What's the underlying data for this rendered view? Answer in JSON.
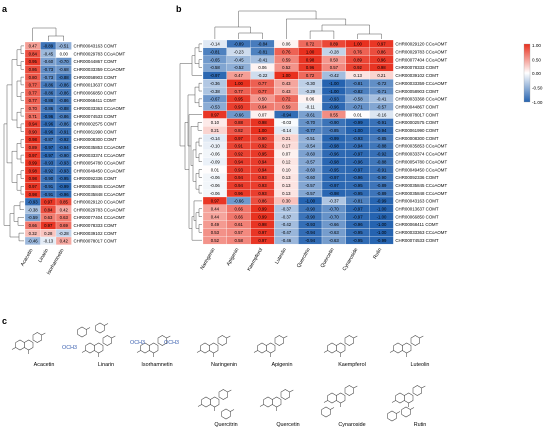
{
  "panels": [
    "a",
    "b",
    "c"
  ],
  "heatmap_a": {
    "columns": [
      "Acacetin",
      "Linarin",
      "Isorhamnetin"
    ],
    "rows": [
      {
        "gene": "CHR00043163 COMT",
        "values": [
          0.47,
          -0.89,
          -0.51
        ]
      },
      {
        "gene": "CHR00029783 CCoAOMT",
        "values": [
          0.84,
          -0.45,
          0.0
        ]
      },
      {
        "gene": "CHR00044867 COMT",
        "values": [
          0.95,
          -0.6,
          -0.7
        ]
      },
      {
        "gene": "CHR00033359 CCoAOMT",
        "values": [
          0.86,
          -0.73,
          -0.68
        ]
      },
      {
        "gene": "CHR00058903 COMT",
        "values": [
          0.8,
          -0.73,
          -0.88
        ]
      },
      {
        "gene": "CHR00013637 COMT",
        "values": [
          0.77,
          -0.86,
          -0.86
        ]
      },
      {
        "gene": "CHR00066850 COMT",
        "values": [
          0.77,
          -0.86,
          -0.86
        ]
      },
      {
        "gene": "CHR00068411 COMT",
        "values": [
          0.77,
          -0.88,
          -0.86
        ]
      },
      {
        "gene": "CHR00033363 CCoAOMT",
        "values": [
          0.7,
          -0.86,
          -0.88
        ]
      },
      {
        "gene": "CHR00074533 COMT",
        "values": [
          0.71,
          -0.96,
          -0.86
        ]
      },
      {
        "gene": "CHR00002575 COMT",
        "values": [
          0.94,
          -0.96,
          -0.86
        ]
      },
      {
        "gene": "CHR00061990 COMT",
        "values": [
          0.9,
          -0.96,
          -0.91
        ]
      },
      {
        "gene": "CHR00008300 COMT",
        "values": [
          0.98,
          -0.87,
          -0.92
        ]
      },
      {
        "gene": "CHR00035853 CCoAOMT",
        "values": [
          0.89,
          -0.97,
          -0.94
        ]
      },
      {
        "gene": "CHR00033374 CCoAOMT",
        "values": [
          0.97,
          -0.97,
          -0.9
        ]
      },
      {
        "gene": "CHR00054780 CCoAOMT",
        "values": [
          0.99,
          -0.93,
          -0.93
        ]
      },
      {
        "gene": "CHR00049450 CCoAOMT",
        "values": [
          0.98,
          -0.92,
          -0.93
        ]
      },
      {
        "gene": "CHR00092336 COMT",
        "values": [
          0.98,
          -0.9,
          -0.95
        ]
      },
      {
        "gene": "CHR00035845 CCoAOMT",
        "values": [
          0.97,
          -0.91,
          -0.99
        ]
      },
      {
        "gene": "CHR00035848 CCoAOMT",
        "values": [
          0.98,
          -0.91,
          -0.96
        ]
      },
      {
        "gene": "CHR00029120 CCoAOMT",
        "values": [
          -0.93,
          0.97,
          0.85
        ]
      },
      {
        "gene": "CHR00029783 CCoAOMT",
        "values": [
          -0.38,
          0.84,
          0.42
        ]
      },
      {
        "gene": "CHR00077404 CCoAOMT",
        "values": [
          -0.59,
          0.63,
          0.63
        ]
      },
      {
        "gene": "CHR00078333 COMT",
        "values": [
          0.66,
          0.97,
          0.69
        ]
      },
      {
        "gene": "CHR00039102 COMT",
        "values": [
          0.32,
          0.28,
          -0.28
        ]
      },
      {
        "gene": "CHR00078017 COMT",
        "values": [
          -0.46,
          -0.13,
          0.42
        ]
      }
    ]
  },
  "heatmap_b": {
    "columns": [
      "Naringenin",
      "Apigenin",
      "Kaempferol",
      "Luteolin",
      "Quercitrin",
      "Quercetin",
      "Cynaroside",
      "Rutin"
    ],
    "rows": [
      {
        "gene": "CHR00029120 CCoAOMT",
        "values": [
          -0.14,
          -0.89,
          -0.84,
          0.06,
          0.72,
          0.89,
          1.0,
          0.97
        ]
      },
      {
        "gene": "CHR00029783 CCoAOMT",
        "values": [
          -0.81,
          -0.23,
          -0.81,
          0.76,
          1.0,
          -0.28,
          0.76,
          0.86
        ]
      },
      {
        "gene": "CHR00077404 CCoAOMT",
        "values": [
          -0.65,
          -0.45,
          -0.41,
          0.59,
          0.98,
          0.5,
          0.89,
          0.96
        ]
      },
      {
        "gene": "CHR00078333 COMT",
        "values": [
          -0.58,
          -0.52,
          0.06,
          0.52,
          0.96,
          0.57,
          0.92,
          0.98
        ]
      },
      {
        "gene": "CHR00039102 COMT",
        "values": [
          -0.97,
          0.47,
          -0.22,
          1.0,
          0.72,
          -0.42,
          0.13,
          0.21
        ]
      },
      {
        "gene": "CHR00033359 CCoAOMT",
        "values": [
          -0.36,
          1.0,
          0.77,
          0.43,
          -0.3,
          -1.0,
          -0.81,
          -0.72
        ]
      },
      {
        "gene": "CHR00058903 COMT",
        "values": [
          -0.38,
          0.77,
          0.77,
          0.43,
          -0.29,
          -1.0,
          -0.82,
          -0.71
        ]
      },
      {
        "gene": "CHR00033368 CCoAOMT",
        "values": [
          -0.67,
          0.95,
          0.5,
          0.72,
          0.06,
          -0.93,
          -0.58,
          -0.41
        ]
      },
      {
        "gene": "CHR00044867 COMT",
        "values": [
          -0.53,
          0.93,
          0.64,
          0.59,
          -0.11,
          -0.96,
          -0.71,
          -0.57
        ]
      },
      {
        "gene": "CHR00078017 COMT",
        "values": [
          0.97,
          -0.66,
          0.07,
          -0.94,
          -0.61,
          0.55,
          0.01,
          -0.16
        ]
      },
      {
        "gene": "CHR00002575 COMT",
        "values": [
          0.1,
          0.88,
          0.98,
          -0.03,
          -0.7,
          -0.9,
          -0.99,
          -0.91
        ]
      },
      {
        "gene": "CHR00061990 COMT",
        "values": [
          0.21,
          0.82,
          1.0,
          -0.14,
          -0.77,
          -0.85,
          -1.0,
          -0.94
        ]
      },
      {
        "gene": "CHR00008300 COMT",
        "values": [
          -0.14,
          0.97,
          0.9,
          0.21,
          -0.51,
          -0.99,
          -0.93,
          -0.85
        ]
      },
      {
        "gene": "CHR00035853 CCoAOMT",
        "values": [
          -0.1,
          0.91,
          0.92,
          0.17,
          -0.54,
          -0.98,
          -0.94,
          -0.88
        ]
      },
      {
        "gene": "CHR00033374 CCoAOMT",
        "values": [
          -0.06,
          0.92,
          0.95,
          0.07,
          -0.6,
          -0.96,
          -0.97,
          -0.92
        ]
      },
      {
        "gene": "CHR00054780 CCoAOMT",
        "values": [
          -0.09,
          0.94,
          0.94,
          0.12,
          -0.57,
          -0.98,
          -0.96,
          -0.88
        ]
      },
      {
        "gene": "CHR00049450 CCoAOMT",
        "values": [
          0.01,
          0.93,
          0.94,
          0.1,
          -0.6,
          -0.95,
          -0.97,
          -0.91
        ]
      },
      {
        "gene": "CHR00092336 COMT",
        "values": [
          -0.06,
          0.94,
          0.93,
          0.13,
          -0.6,
          -0.97,
          -0.96,
          -0.9
        ]
      },
      {
        "gene": "CHR00035845 CCoAOMT",
        "values": [
          -0.06,
          0.94,
          0.93,
          0.13,
          -0.57,
          -0.97,
          -0.95,
          -0.89
        ]
      },
      {
        "gene": "CHR00035848 CCoAOMT",
        "values": [
          -0.06,
          0.96,
          0.93,
          0.13,
          -0.57,
          -0.98,
          -0.95,
          -0.89
        ]
      },
      {
        "gene": "CHR00043163 COMT",
        "values": [
          0.97,
          -0.66,
          0.86,
          0.3,
          -1.0,
          -0.37,
          -0.81,
          -0.99
        ]
      },
      {
        "gene": "CHR00013637 COMT",
        "values": [
          0.44,
          0.66,
          0.99,
          -0.37,
          -0.9,
          -0.7,
          -0.97,
          -1.0
        ]
      },
      {
        "gene": "CHR00066850 COMT",
        "values": [
          0.44,
          0.66,
          0.99,
          -0.37,
          -0.9,
          -0.7,
          -0.97,
          -1.0
        ]
      },
      {
        "gene": "CHR00068411 COMT",
        "values": [
          0.49,
          0.61,
          0.98,
          -0.42,
          -0.93,
          -0.66,
          -0.96,
          -1.0
        ]
      },
      {
        "gene": "CHR00033363 CCoAOMT",
        "values": [
          0.53,
          0.57,
          0.97,
          -0.47,
          -0.94,
          -0.63,
          -0.95,
          -1.0
        ]
      },
      {
        "gene": "CHR00074533 COMT",
        "values": [
          0.52,
          0.58,
          0.97,
          -0.46,
          -0.94,
          -0.63,
          -0.95,
          -0.99
        ]
      }
    ]
  },
  "colorbar": {
    "max_label": "1.00",
    "mid_label": "0.00",
    "min_label": "-1.00",
    "ticks": [
      "1.00",
      "0.50",
      "0.00",
      "-0.50",
      "-1.00"
    ],
    "high_color": "#e8301e",
    "mid_color": "#ffffff",
    "low_color": "#2563b0"
  },
  "molecules": {
    "row1": [
      "Acacetin",
      "Linarin",
      "Isorhamnetin",
      "Naringenin",
      "Apigenin",
      "Kaempferol",
      "Luteolin"
    ],
    "row2": [
      "Quercitrin",
      "Quercetin",
      "Cynaroside",
      "Rutin"
    ],
    "och3_label": "OCH3"
  }
}
